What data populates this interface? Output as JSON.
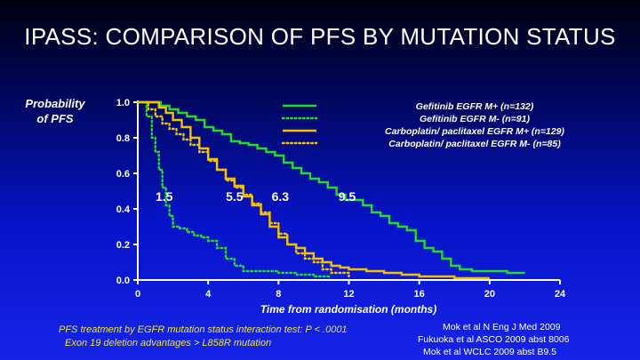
{
  "slide": {
    "title": "IPASS: COMPARISON OF PFS BY MUTATION STATUS",
    "footnotes": [
      "PFS treatment by EGFR mutation status interaction test: P < .0001",
      "Exon 19 deletion advantages > L858R mutation"
    ],
    "references": [
      "Mok et al N Eng J Med 2009",
      "Fukuoka et al ASCO 2009 abst 8006",
      "Mok et al WCLC 2009 abst B9.5"
    ]
  },
  "chart_data": {
    "type": "line",
    "xlabel": "Time from randomisation (months)",
    "ylabel": "Probability of PFS",
    "xlim": [
      0,
      24
    ],
    "ylim": [
      0,
      1.0
    ],
    "xticks": [
      0,
      4,
      8,
      12,
      16,
      20,
      24
    ],
    "yticks": [
      0.0,
      0.2,
      0.4,
      0.6,
      0.8,
      1.0
    ],
    "xtick_labels": [
      "0",
      "4",
      "8",
      "12",
      "16",
      "20",
      "24"
    ],
    "ytick_labels": [
      "0.0",
      "0.2",
      "0.4",
      "0.6",
      "0.8",
      "1.0"
    ],
    "legend_position": "top-right",
    "series": [
      {
        "name": "Gefitinib EGFR M+ (n=132)",
        "color": "#22dd22",
        "style": "solid",
        "x": [
          0,
          0.8,
          1.3,
          1.8,
          2.3,
          2.8,
          3.3,
          3.8,
          4.3,
          4.8,
          5.3,
          5.8,
          6.3,
          6.8,
          7.3,
          7.8,
          8.3,
          8.8,
          9.3,
          9.8,
          10.3,
          10.8,
          11.3,
          11.8,
          12.3,
          12.8,
          13.3,
          13.8,
          14.3,
          14.8,
          15.3,
          15.8,
          16.3,
          16.8,
          17.3,
          17.8,
          18.3,
          19.0,
          20.0,
          21.0,
          22.0
        ],
        "y": [
          1.0,
          1.0,
          0.98,
          0.96,
          0.94,
          0.92,
          0.9,
          0.86,
          0.84,
          0.82,
          0.78,
          0.77,
          0.76,
          0.74,
          0.72,
          0.7,
          0.66,
          0.63,
          0.6,
          0.57,
          0.55,
          0.52,
          0.48,
          0.45,
          0.45,
          0.42,
          0.38,
          0.36,
          0.32,
          0.3,
          0.28,
          0.22,
          0.18,
          0.16,
          0.12,
          0.08,
          0.06,
          0.05,
          0.05,
          0.04,
          0.04
        ]
      },
      {
        "name": "Gefitinib EGFR M- (n=91)",
        "color": "#22dd22",
        "style": "dotted",
        "x": [
          0,
          0.5,
          0.8,
          1.0,
          1.2,
          1.4,
          1.6,
          1.8,
          2.0,
          2.4,
          2.8,
          3.2,
          3.6,
          4.0,
          4.5,
          5.0,
          5.5,
          6.0,
          7.0,
          8.0,
          9.0,
          10.0,
          11.0
        ],
        "y": [
          1.0,
          0.92,
          0.8,
          0.72,
          0.62,
          0.52,
          0.42,
          0.36,
          0.3,
          0.29,
          0.27,
          0.25,
          0.24,
          0.22,
          0.18,
          0.12,
          0.08,
          0.05,
          0.05,
          0.04,
          0.03,
          0.02,
          0.02
        ]
      },
      {
        "name": "Carboplatin/ paclitaxel EGFR M+ (n=129)",
        "color": "#f2c200",
        "style": "solid",
        "x": [
          0,
          0.7,
          1.2,
          1.6,
          2.0,
          2.5,
          3.0,
          3.5,
          4.0,
          4.5,
          5.0,
          5.5,
          6.0,
          6.5,
          7.0,
          7.5,
          8.0,
          8.5,
          9.0,
          9.5,
          10.0,
          10.5,
          11.0,
          11.5,
          12.0,
          13.0,
          14.0,
          15.0,
          16.0,
          17.0,
          18.0,
          19.0,
          20.0
        ],
        "y": [
          1.0,
          1.0,
          0.97,
          0.94,
          0.9,
          0.86,
          0.8,
          0.74,
          0.68,
          0.62,
          0.57,
          0.53,
          0.47,
          0.42,
          0.37,
          0.3,
          0.24,
          0.2,
          0.18,
          0.15,
          0.12,
          0.1,
          0.08,
          0.07,
          0.06,
          0.05,
          0.04,
          0.03,
          0.02,
          0.02,
          0.01,
          0.01,
          0.01
        ]
      },
      {
        "name": "Carboplatin/ paclitaxel EGFR M- (n=85)",
        "color": "#f2c200",
        "style": "dotted",
        "x": [
          0,
          0.6,
          1.0,
          1.4,
          1.8,
          2.2,
          2.6,
          3.0,
          3.5,
          4.0,
          4.5,
          5.0,
          5.5,
          6.0,
          6.5,
          7.0,
          7.5,
          8.0,
          8.5,
          9.0,
          9.5,
          10.0,
          10.5,
          11.0,
          12.0
        ],
        "y": [
          1.0,
          0.96,
          0.92,
          0.88,
          0.85,
          0.82,
          0.79,
          0.76,
          0.72,
          0.67,
          0.62,
          0.56,
          0.52,
          0.48,
          0.43,
          0.38,
          0.32,
          0.26,
          0.2,
          0.15,
          0.12,
          0.1,
          0.06,
          0.04,
          0.02
        ]
      }
    ],
    "annotations": [
      {
        "text": "1.5",
        "x": 1.5,
        "y": 0.47
      },
      {
        "text": "5.5",
        "x": 5.5,
        "y": 0.47
      },
      {
        "text": "6.3",
        "x": 8.1,
        "y": 0.47
      },
      {
        "text": "9.5",
        "x": 11.9,
        "y": 0.47
      }
    ]
  }
}
